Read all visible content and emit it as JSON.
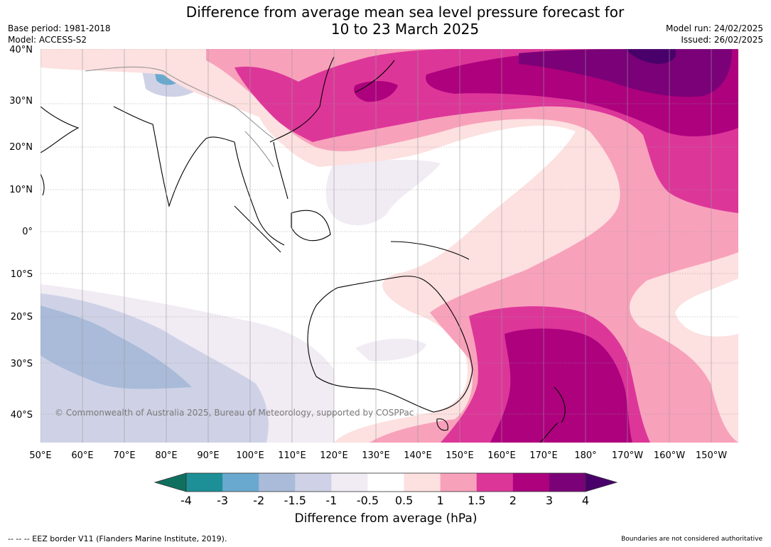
{
  "title": {
    "line1": "Difference from average mean sea level pressure forecast for",
    "line2": "10 to 23 March 2025"
  },
  "meta": {
    "base_period": "Base period: 1981-2018",
    "model": "Model: ACCESS-S2",
    "model_run": "Model run: 24/02/2025",
    "issued": "Issued: 26/02/2025"
  },
  "map": {
    "lat_labels": [
      "40°N",
      "30°N",
      "20°N",
      "10°N",
      "0°",
      "10°S",
      "20°S",
      "30°S",
      "40°S"
    ],
    "lon_labels": [
      "50°E",
      "60°E",
      "70°E",
      "80°E",
      "90°E",
      "100°E",
      "110°E",
      "120°E",
      "130°E",
      "140°E",
      "150°E",
      "160°E",
      "170°E",
      "180°",
      "170°W",
      "160°W",
      "150°W"
    ],
    "copyright": "© Commonwealth of Australia 2025, Bureau of Meteorology, supported by COSPPac",
    "colors": {
      "neg4": "#0f7060",
      "neg3": "#1d8f96",
      "neg2": "#6aa9cf",
      "neg15": "#a9bbd9",
      "neg1": "#cfd2e6",
      "neg05": "#f1ebf4",
      "zero": "#ffffff",
      "pos05": "#fde0e0",
      "pos1": "#f8a1bb",
      "pos15": "#dd3699",
      "pos2": "#ad017e",
      "pos3": "#7a0177",
      "pos4": "#49006a",
      "land": "#000000",
      "border": "#8c8c8c",
      "grid": "#9a9a9a"
    }
  },
  "colorbar": {
    "title": "Difference from average (hPa)",
    "ticks": [
      "-4",
      "-3",
      "-2",
      "-1.5",
      "-1",
      "-0.5",
      "0.5",
      "1",
      "1.5",
      "2",
      "3",
      "4"
    ],
    "colors": [
      "#1d8f96",
      "#6aa9cf",
      "#a9bbd9",
      "#cfd2e6",
      "#f1ebf4",
      "#ffffff",
      "#fde0e0",
      "#f8a1bb",
      "#dd3699",
      "#ad017e",
      "#7a0177"
    ],
    "under_color": "#0f7060",
    "over_color": "#49006a"
  },
  "footer": {
    "left": "--  --  -- EEZ border V11 (Flanders Marine Institute, 2019).",
    "right": "Boundaries are not considered authoritative"
  }
}
